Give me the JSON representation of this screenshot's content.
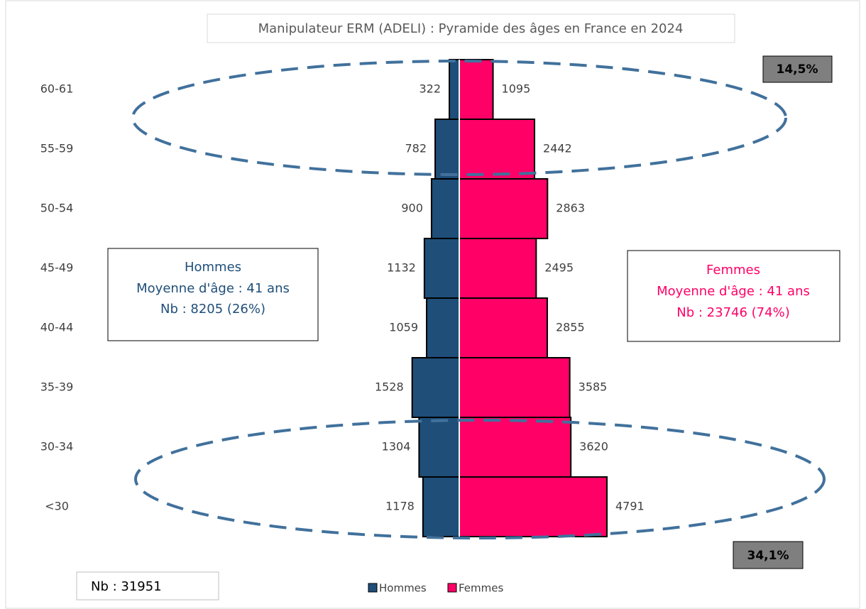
{
  "chart_data": {
    "type": "pyramid",
    "title": "Manipulateur ERM (ADELI) : Pyramide des âges en France en 2024",
    "categories": [
      "60-61",
      "55-59",
      "50-54",
      "45-49",
      "40-44",
      "35-39",
      "30-34",
      "<30"
    ],
    "series": [
      {
        "name": "Hommes",
        "color": "#1f4e79",
        "values": [
          322,
          782,
          900,
          1132,
          1059,
          1528,
          1304,
          1178
        ]
      },
      {
        "name": "Femmes",
        "color": "#ff0066",
        "values": [
          1095,
          2442,
          2863,
          2495,
          2855,
          3585,
          3620,
          4791
        ]
      }
    ],
    "hommes_box": [
      "Hommes",
      "Moyenne d'âge : 41 ans",
      "Nb : 8205 (26%)"
    ],
    "femmes_box": [
      "Femmes",
      "Moyenne d'âge : 41 ans",
      "Nb : 23746 (74%)"
    ],
    "annotations": [
      "14,5%",
      "34,1%"
    ],
    "total": "Nb : 31951",
    "legend": "bottom"
  }
}
